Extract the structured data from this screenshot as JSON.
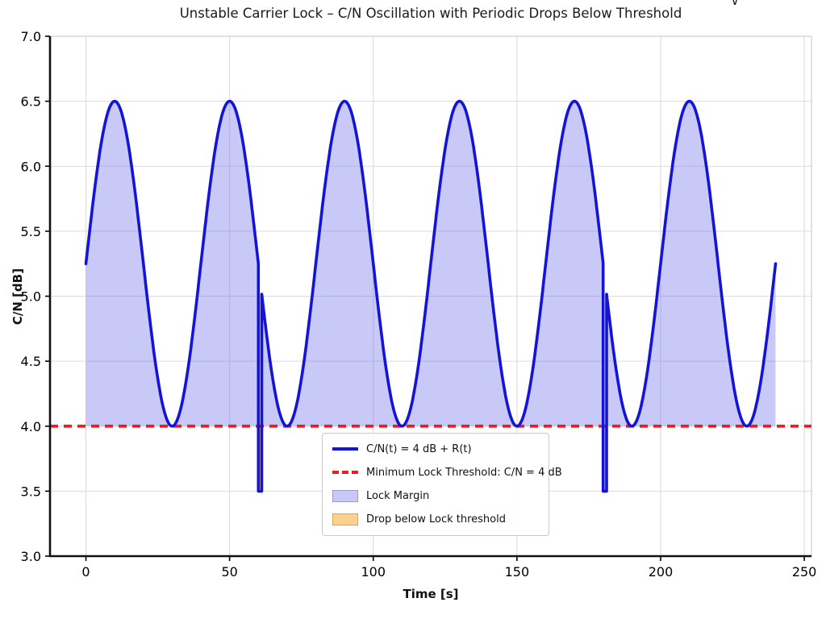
{
  "page": {
    "corner_artifact": "∨"
  },
  "chart_data": {
    "type": "line",
    "title": "Unstable Carrier Lock – C/N Oscillation with Periodic Drops Below Threshold",
    "xlabel": "Time [s]",
    "ylabel": "C/N [dB]",
    "xlim": [
      -12.5,
      252.5
    ],
    "ylim": [
      3.0,
      7.0
    ],
    "x_ticks": [
      0,
      50,
      100,
      150,
      200,
      250
    ],
    "y_ticks": [
      3.0,
      3.5,
      4.0,
      4.5,
      5.0,
      5.5,
      6.0,
      6.5,
      7.0
    ],
    "grid": true,
    "grid_color": "#dcdcdc",
    "legend_position": "lower center",
    "signal": {
      "label": "C/N(t) = 4 dB + R(t)",
      "color": "#1414d6",
      "line_width": 3.6,
      "mean_db": 5.25,
      "amplitude_db": 1.25,
      "period_s": 40,
      "t_start": 0,
      "t_end": 240,
      "peaks_t": [
        10,
        50,
        90,
        130,
        170,
        210
      ],
      "peak_db": 6.5,
      "troughs_t": [
        30,
        70,
        110,
        150,
        190,
        230
      ],
      "trough_db": 4.0
    },
    "threshold": {
      "label": "Minimum Lock Threshold: C/N = 4 dB",
      "value_db": 4.0,
      "color": "#e81e1e",
      "line_width": 3.8,
      "dash": [
        10,
        7
      ]
    },
    "dropouts": [
      {
        "t_start": 60,
        "t_end": 61.2,
        "level_db": 3.5
      },
      {
        "t_start": 180,
        "t_end": 181.2,
        "level_db": 3.5
      }
    ],
    "fills": {
      "lock_margin": {
        "label": "Lock Margin",
        "color": "rgba(100,100,235,0.35)",
        "edge": "#9a9ad8"
      },
      "drop": {
        "label": "Drop below Lock threshold",
        "color": "rgba(248,172,48,0.55)",
        "edge": "#d8a84f"
      }
    },
    "samples_coarse": {
      "t": [
        0,
        5,
        10,
        15,
        20,
        25,
        30,
        35,
        40,
        45,
        50,
        55,
        60,
        65,
        70,
        75,
        80,
        85,
        90,
        95,
        100,
        105,
        110,
        115,
        120,
        125,
        130,
        135,
        140,
        145,
        150,
        155,
        160,
        165,
        170,
        175,
        180,
        185,
        190,
        195,
        200,
        205,
        210,
        215,
        220,
        225,
        230,
        235,
        240
      ],
      "db": [
        5.25,
        6.13,
        6.5,
        6.13,
        5.25,
        4.37,
        4.0,
        4.37,
        5.25,
        6.13,
        6.5,
        6.13,
        3.5,
        4.37,
        4.0,
        4.37,
        5.25,
        6.13,
        6.5,
        6.13,
        5.25,
        4.37,
        4.0,
        4.37,
        5.25,
        6.13,
        6.5,
        6.13,
        5.25,
        4.37,
        4.0,
        4.37,
        5.25,
        6.13,
        6.5,
        6.13,
        3.5,
        4.37,
        4.0,
        4.37,
        5.25,
        6.13,
        6.5,
        6.13,
        5.25,
        4.37,
        4.0,
        4.37,
        5.25
      ]
    }
  }
}
